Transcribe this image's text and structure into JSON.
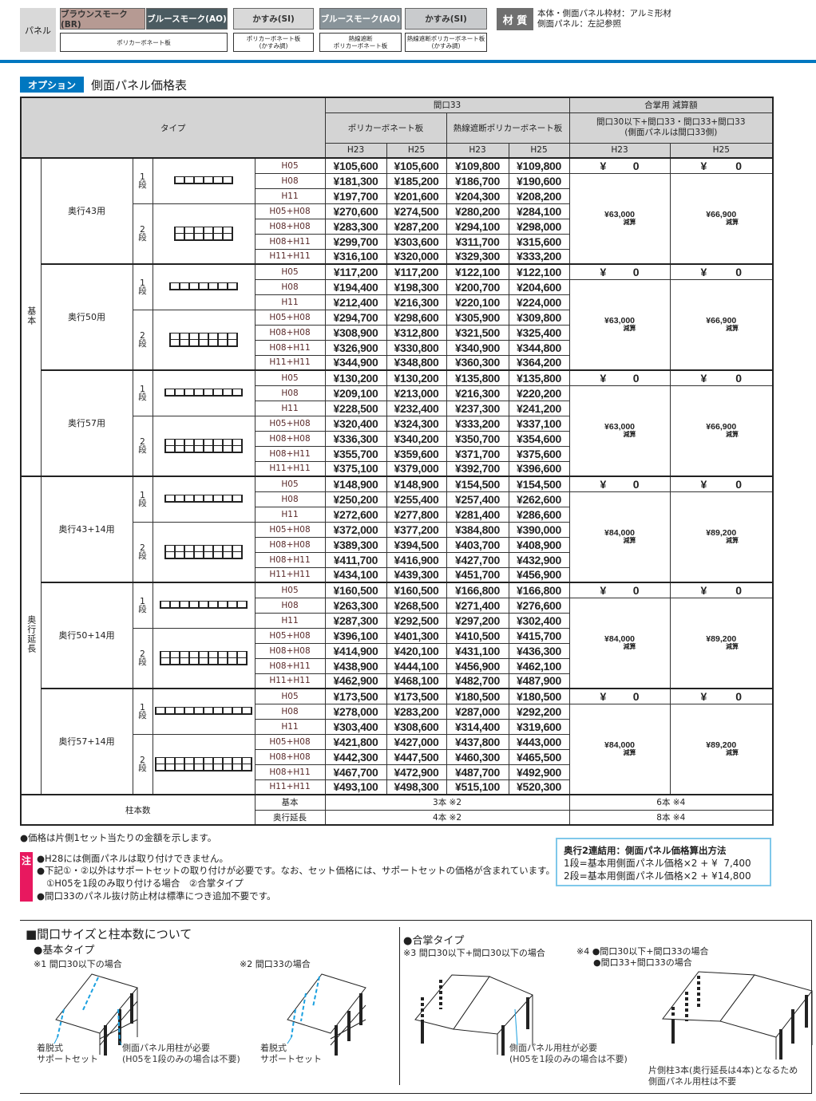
{
  "panel_header": {
    "label": "パネル",
    "swatches": [
      {
        "name": "ブラウンスモーク(BR)",
        "color": "#b69a93"
      },
      {
        "name": "ブルースモーク(AO)",
        "color": "#4b5b61"
      },
      {
        "name": "かすみ(SI)",
        "color": "#d9d9d9"
      },
      {
        "name": "ブルースモーク(AO)",
        "color": "#89949a"
      },
      {
        "name": "かすみ(SI)",
        "color": "#c9cbcd"
      }
    ],
    "materials": [
      "ポリカーボネート板",
      "ポリカーボネート板\n(かすみ調)",
      "熱線遮断\nポリカーボネート板",
      "熱線遮断ポリカーボネート板\n(かすみ調)"
    ],
    "material_label": "材 質",
    "material_lines": [
      "本体・側面パネル枠材：アルミ形材",
      "側面パネル：左記参照"
    ]
  },
  "accent_color": "#0077c0",
  "section": {
    "badge": "オプション",
    "title": "側面パネル価格表"
  },
  "table": {
    "type_header": "タイプ",
    "maguchi_header": "間口33",
    "poly_header": "ポリカーボネート板",
    "heat_header": "熱線遮断ポリカーボネート板",
    "gassho_header": "合掌用 減算額",
    "gassho_sub": "間口30以下+間口33・間口33+間口33\n(側面パネルは間口33側)",
    "h_cols": [
      "H23",
      "H25",
      "H23",
      "H25",
      "H23",
      "H25"
    ],
    "heights": [
      "H05",
      "H08",
      "H11",
      "H05+H08",
      "H08+H08",
      "H08+H11",
      "H11+H11"
    ],
    "dan": [
      "1\n段",
      "2\n段"
    ],
    "yen": "¥",
    "zero": "0",
    "deduct_suffix": "減算",
    "groups": [
      {
        "label": "基本",
        "types": [
          {
            "label": "奥行43用",
            "cells": 6,
            "deduct": [
              "¥63,000",
              "¥66,900"
            ],
            "prices": [
              [
                "¥105,600",
                "¥105,600",
                "¥109,800",
                "¥109,800"
              ],
              [
                "¥181,300",
                "¥185,200",
                "¥186,700",
                "¥190,600"
              ],
              [
                "¥197,700",
                "¥201,600",
                "¥204,300",
                "¥208,200"
              ],
              [
                "¥270,600",
                "¥274,500",
                "¥280,200",
                "¥284,100"
              ],
              [
                "¥283,300",
                "¥287,200",
                "¥294,100",
                "¥298,000"
              ],
              [
                "¥299,700",
                "¥303,600",
                "¥311,700",
                "¥315,600"
              ],
              [
                "¥316,100",
                "¥320,000",
                "¥329,300",
                "¥333,200"
              ]
            ]
          },
          {
            "label": "奥行50用",
            "cells": 7,
            "deduct": [
              "¥63,000",
              "¥66,900"
            ],
            "prices": [
              [
                "¥117,200",
                "¥117,200",
                "¥122,100",
                "¥122,100"
              ],
              [
                "¥194,400",
                "¥198,300",
                "¥200,700",
                "¥204,600"
              ],
              [
                "¥212,400",
                "¥216,300",
                "¥220,100",
                "¥224,000"
              ],
              [
                "¥294,700",
                "¥298,600",
                "¥305,900",
                "¥309,800"
              ],
              [
                "¥308,900",
                "¥312,800",
                "¥321,500",
                "¥325,400"
              ],
              [
                "¥326,900",
                "¥330,800",
                "¥340,900",
                "¥344,800"
              ],
              [
                "¥344,900",
                "¥348,800",
                "¥360,300",
                "¥364,200"
              ]
            ]
          },
          {
            "label": "奥行57用",
            "cells": 8,
            "deduct": [
              "¥63,000",
              "¥66,900"
            ],
            "prices": [
              [
                "¥130,200",
                "¥130,200",
                "¥135,800",
                "¥135,800"
              ],
              [
                "¥209,100",
                "¥213,000",
                "¥216,300",
                "¥220,200"
              ],
              [
                "¥228,500",
                "¥232,400",
                "¥237,300",
                "¥241,200"
              ],
              [
                "¥320,400",
                "¥324,300",
                "¥333,200",
                "¥337,100"
              ],
              [
                "¥336,300",
                "¥340,200",
                "¥350,700",
                "¥354,600"
              ],
              [
                "¥355,700",
                "¥359,600",
                "¥371,700",
                "¥375,600"
              ],
              [
                "¥375,100",
                "¥379,000",
                "¥392,700",
                "¥396,600"
              ]
            ]
          }
        ]
      },
      {
        "label": "奥行延長",
        "types": [
          {
            "label": "奥行43+14用",
            "cells": 8,
            "deduct": [
              "¥84,000",
              "¥89,200"
            ],
            "prices": [
              [
                "¥148,900",
                "¥148,900",
                "¥154,500",
                "¥154,500"
              ],
              [
                "¥250,200",
                "¥255,400",
                "¥257,400",
                "¥262,600"
              ],
              [
                "¥272,600",
                "¥277,800",
                "¥281,400",
                "¥286,600"
              ],
              [
                "¥372,000",
                "¥377,200",
                "¥384,800",
                "¥390,000"
              ],
              [
                "¥389,300",
                "¥394,500",
                "¥403,700",
                "¥408,900"
              ],
              [
                "¥411,700",
                "¥416,900",
                "¥427,700",
                "¥432,900"
              ],
              [
                "¥434,100",
                "¥439,300",
                "¥451,700",
                "¥456,900"
              ]
            ]
          },
          {
            "label": "奥行50+14用",
            "cells": 9,
            "deduct": [
              "¥84,000",
              "¥89,200"
            ],
            "prices": [
              [
                "¥160,500",
                "¥160,500",
                "¥166,800",
                "¥166,800"
              ],
              [
                "¥263,300",
                "¥268,500",
                "¥271,400",
                "¥276,600"
              ],
              [
                "¥287,300",
                "¥292,500",
                "¥297,200",
                "¥302,400"
              ],
              [
                "¥396,100",
                "¥401,300",
                "¥410,500",
                "¥415,700"
              ],
              [
                "¥414,900",
                "¥420,100",
                "¥431,100",
                "¥436,300"
              ],
              [
                "¥438,900",
                "¥444,100",
                "¥456,900",
                "¥462,100"
              ],
              [
                "¥462,900",
                "¥468,100",
                "¥482,700",
                "¥487,900"
              ]
            ]
          },
          {
            "label": "奥行57+14用",
            "cells": 10,
            "deduct": [
              "¥84,000",
              "¥89,200"
            ],
            "prices": [
              [
                "¥173,500",
                "¥173,500",
                "¥180,500",
                "¥180,500"
              ],
              [
                "¥278,000",
                "¥283,200",
                "¥287,000",
                "¥292,200"
              ],
              [
                "¥303,400",
                "¥308,600",
                "¥314,400",
                "¥319,600"
              ],
              [
                "¥421,800",
                "¥427,000",
                "¥437,800",
                "¥443,000"
              ],
              [
                "¥442,300",
                "¥447,500",
                "¥460,300",
                "¥465,500"
              ],
              [
                "¥467,700",
                "¥472,900",
                "¥487,700",
                "¥492,900"
              ],
              [
                "¥493,100",
                "¥498,300",
                "¥515,100",
                "¥520,300"
              ]
            ]
          }
        ]
      }
    ],
    "posts": {
      "label": "柱本数",
      "rows": [
        {
          "label": "基本",
          "m33": "3本 ※2",
          "gassho": "6本 ※4"
        },
        {
          "label": "奥行延長",
          "m33": "4本 ※2",
          "gassho": "8本 ※4"
        }
      ]
    }
  },
  "notes": {
    "price_note": "●価格は片側1セット当たりの金額を示します。",
    "caution_label": "注",
    "caution_color": "#e8185f",
    "items": [
      "●H28には側面パネルは取り付けできません。",
      "●下記①・②以外はサポートセットの取り付けが必要です。なお、セット価格には、サポートセットの価格が含まれています。",
      "①H05を1段のみ取り付ける場合　②合掌タイプ",
      "●間口33のパネル抜け防止材は標準につき追加不要です。"
    ],
    "calc_box": {
      "title": "奥行2連結用：側面パネル価格算出方法",
      "lines": [
        "1段=基本用側面パネル価格×2 + ¥  7,400",
        "2段=基本用側面パネル価格×2 + ¥14,800"
      ],
      "border_color": "#7fc8ea"
    }
  },
  "bottom": {
    "title": "■間口サイズと柱本数について",
    "basic": "●基本タイプ",
    "basic_1": "※1 間口30以下の場合",
    "basic_2": "※2 間口33の場合",
    "support_set": "着脱式\nサポートセット",
    "post_needed": "側面パネル用柱が必要\n(H05を1段のみの場合は不要)",
    "gassho": "●合掌タイプ",
    "gassho_3": "※3 間口30以下+間口30以下の場合",
    "gassho_4": "※4 ●間口30以下+間口33の場合\n      ●間口33+間口33の場合",
    "gassho_note": "片側柱3本(奥行延長は4本)となるため\n側面パネル用柱は不要"
  }
}
